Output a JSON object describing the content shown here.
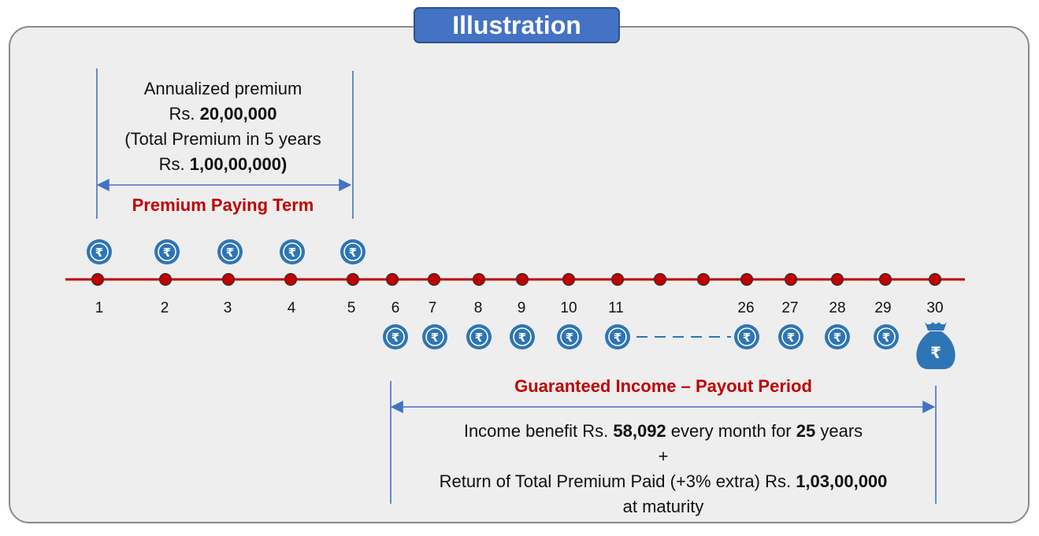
{
  "title": "Illustration",
  "premium_box": {
    "line1": "Annualized premium",
    "line2_prefix": "Rs. ",
    "line2_amount": "20,00,000",
    "line3": "(Total Premium in 5 years",
    "line4_prefix": "Rs. ",
    "line4_amount": "1,00,00,000)"
  },
  "premium_term_label": "Premium Paying Term",
  "payout_label": "Guaranteed Income – Payout Period",
  "payout_box": {
    "line1_prefix": "Income benefit Rs. ",
    "line1_amount": "58,092",
    "line1_mid": " every month for ",
    "line1_years": "25",
    "line1_suffix": " years",
    "line2": "+",
    "line3_prefix": "Return of Total Premium Paid (+3% extra) Rs. ",
    "line3_amount": "1,03,00,000",
    "line4": "at maturity"
  },
  "timeline": {
    "year_labels": [
      "1",
      "2",
      "3",
      "4",
      "5",
      "6",
      "7",
      "8",
      "9",
      "10",
      "11",
      "26",
      "27",
      "28",
      "29",
      "30"
    ],
    "premium_years": [
      "1",
      "2",
      "3",
      "4",
      "5"
    ],
    "income_years": [
      "6",
      "7",
      "8",
      "9",
      "10",
      "11",
      "26",
      "27",
      "28",
      "29"
    ],
    "maturity_year": "30"
  },
  "currency_symbol": "₹",
  "colors": {
    "title_bg": "#4472c4",
    "coin": "#2e75b6",
    "timeline": "#c00000",
    "dot": "#c00000",
    "bracket": "#4472c4",
    "label_red": "#c00000"
  },
  "icons": [
    "rupee-coin-icon",
    "money-bag-icon"
  ]
}
